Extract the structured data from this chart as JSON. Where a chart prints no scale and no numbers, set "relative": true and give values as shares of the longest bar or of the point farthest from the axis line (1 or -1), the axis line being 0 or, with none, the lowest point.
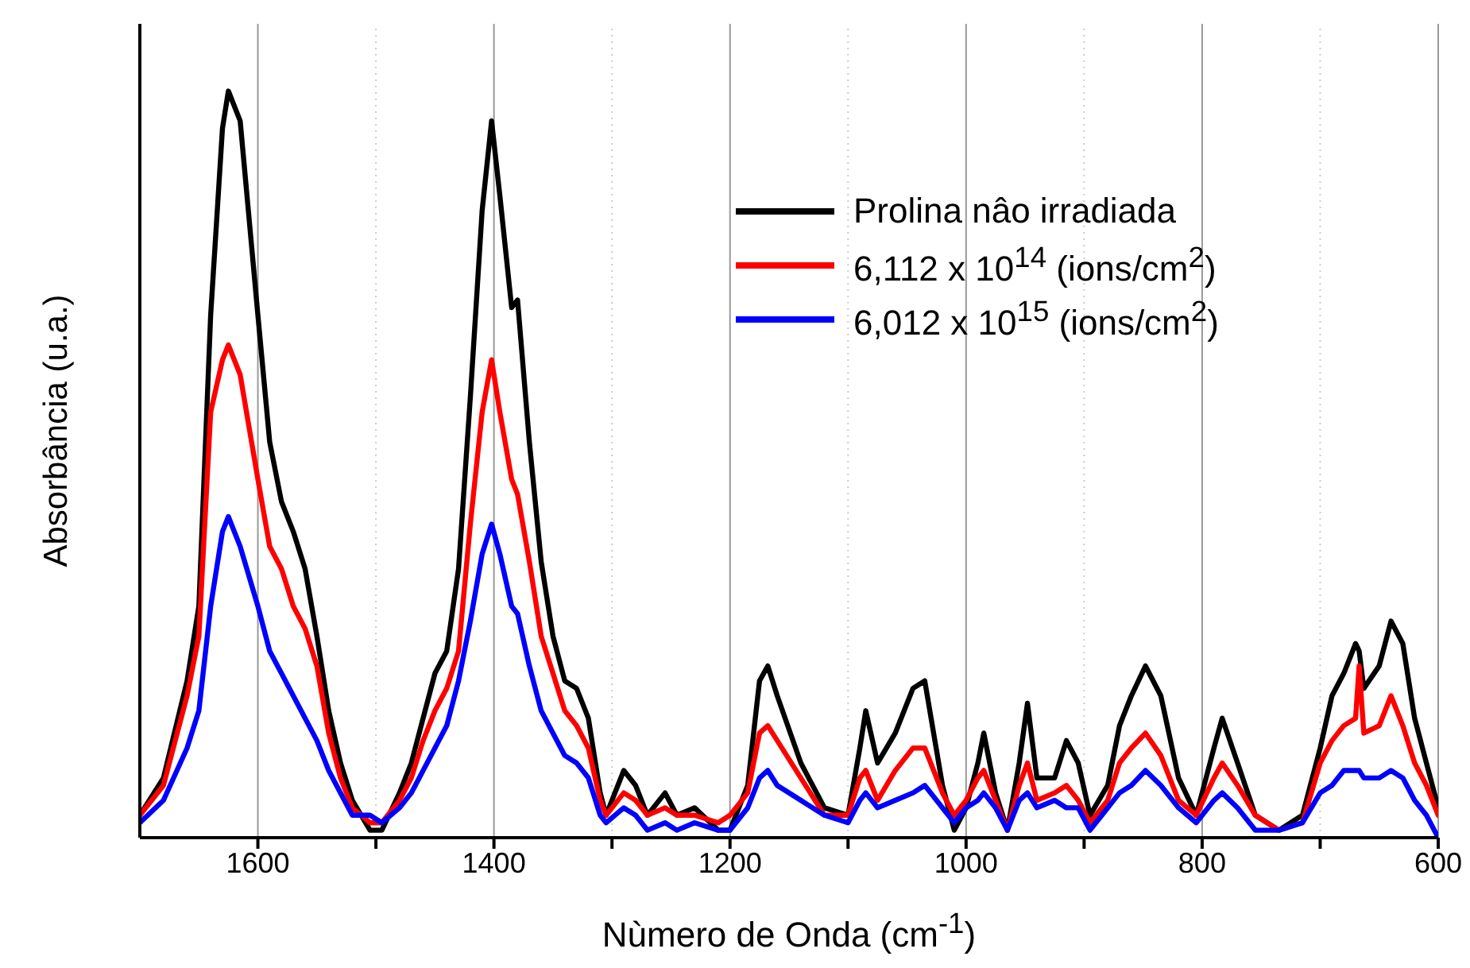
{
  "chart_data": {
    "type": "line",
    "relative": true,
    "xlabel": "Nùmero de Onda (cm$^{-1}$)",
    "ylabel": "Absorbância (u.a.)",
    "xlim": [
      1700,
      600
    ],
    "xticks": [
      {
        "value": 1600,
        "label": "1600"
      },
      {
        "value": 1500,
        "label": null
      },
      {
        "value": 1400,
        "label": "1400"
      },
      {
        "value": 1300,
        "label": null
      },
      {
        "value": 1200,
        "label": "1200"
      },
      {
        "value": 1100,
        "label": null
      },
      {
        "value": 1000,
        "label": "1000"
      },
      {
        "value": 900,
        "label": null
      },
      {
        "value": 800,
        "label": "800"
      },
      {
        "value": 700,
        "label": null
      },
      {
        "value": 600,
        "label": "600"
      }
    ],
    "grid": "x",
    "legend": "top right",
    "marker": "none",
    "line_style": "solid",
    "x": [
      1700,
      1680,
      1660,
      1650,
      1640,
      1630,
      1625,
      1615,
      1600,
      1590,
      1580,
      1570,
      1560,
      1550,
      1540,
      1530,
      1520,
      1505,
      1495,
      1480,
      1470,
      1460,
      1450,
      1440,
      1430,
      1420,
      1410,
      1402,
      1395,
      1385,
      1380,
      1370,
      1360,
      1350,
      1340,
      1330,
      1320,
      1310,
      1305,
      1290,
      1280,
      1270,
      1255,
      1245,
      1230,
      1210,
      1200,
      1185,
      1175,
      1168,
      1160,
      1140,
      1120,
      1100,
      1090,
      1085,
      1075,
      1060,
      1045,
      1035,
      1020,
      1010,
      1000,
      990,
      985,
      975,
      965,
      955,
      948,
      940,
      925,
      915,
      905,
      895,
      880,
      870,
      860,
      848,
      835,
      820,
      805,
      790,
      783,
      770,
      755,
      735,
      715,
      700,
      690,
      680,
      670,
      667,
      663,
      650,
      640,
      630,
      620,
      610,
      600
    ],
    "series": [
      {
        "name": "Prolina nâo irradiada",
        "color": "#000000",
        "values": [
          0.03,
          0.08,
          0.21,
          0.31,
          0.7,
          0.95,
          1.0,
          0.96,
          0.7,
          0.53,
          0.45,
          0.41,
          0.36,
          0.27,
          0.17,
          0.1,
          0.05,
          0.01,
          0.01,
          0.06,
          0.1,
          0.16,
          0.22,
          0.25,
          0.36,
          0.59,
          0.84,
          0.96,
          0.86,
          0.71,
          0.72,
          0.53,
          0.37,
          0.27,
          0.21,
          0.2,
          0.16,
          0.06,
          0.03,
          0.09,
          0.07,
          0.03,
          0.06,
          0.03,
          0.04,
          0.01,
          0.01,
          0.07,
          0.21,
          0.23,
          0.19,
          0.1,
          0.04,
          0.03,
          0.12,
          0.17,
          0.1,
          0.14,
          0.2,
          0.21,
          0.07,
          0.01,
          0.04,
          0.1,
          0.14,
          0.06,
          0.01,
          0.1,
          0.18,
          0.08,
          0.08,
          0.13,
          0.1,
          0.03,
          0.07,
          0.15,
          0.19,
          0.23,
          0.19,
          0.08,
          0.03,
          0.12,
          0.16,
          0.1,
          0.03,
          0.01,
          0.03,
          0.12,
          0.19,
          0.22,
          0.26,
          0.25,
          0.2,
          0.23,
          0.29,
          0.26,
          0.16,
          0.1,
          0.04
        ]
      },
      {
        "name": "6,112 x 10$^{14}$ (ions/cm$^{2}$)",
        "color": "#ff0000",
        "values": [
          0.03,
          0.07,
          0.19,
          0.27,
          0.57,
          0.64,
          0.66,
          0.62,
          0.48,
          0.39,
          0.36,
          0.31,
          0.28,
          0.23,
          0.14,
          0.08,
          0.04,
          0.02,
          0.02,
          0.05,
          0.08,
          0.13,
          0.17,
          0.2,
          0.25,
          0.42,
          0.57,
          0.64,
          0.57,
          0.48,
          0.46,
          0.37,
          0.27,
          0.22,
          0.17,
          0.15,
          0.12,
          0.05,
          0.03,
          0.06,
          0.05,
          0.03,
          0.04,
          0.03,
          0.03,
          0.02,
          0.03,
          0.06,
          0.14,
          0.15,
          0.13,
          0.08,
          0.03,
          0.03,
          0.08,
          0.09,
          0.05,
          0.09,
          0.12,
          0.12,
          0.06,
          0.03,
          0.05,
          0.08,
          0.09,
          0.05,
          0.01,
          0.07,
          0.1,
          0.05,
          0.06,
          0.07,
          0.05,
          0.02,
          0.05,
          0.1,
          0.12,
          0.14,
          0.11,
          0.05,
          0.03,
          0.08,
          0.1,
          0.07,
          0.03,
          0.01,
          0.02,
          0.1,
          0.13,
          0.15,
          0.16,
          0.23,
          0.14,
          0.15,
          0.19,
          0.15,
          0.1,
          0.07,
          0.03
        ]
      },
      {
        "name": "6,012 x 10$^{15}$ (ions/cm$^{2}$)",
        "color": "#0000ff",
        "values": [
          0.02,
          0.05,
          0.12,
          0.17,
          0.31,
          0.41,
          0.43,
          0.39,
          0.31,
          0.25,
          0.22,
          0.19,
          0.16,
          0.13,
          0.09,
          0.06,
          0.03,
          0.03,
          0.02,
          0.04,
          0.06,
          0.09,
          0.12,
          0.15,
          0.21,
          0.29,
          0.38,
          0.42,
          0.38,
          0.31,
          0.3,
          0.23,
          0.17,
          0.14,
          0.11,
          0.1,
          0.08,
          0.03,
          0.02,
          0.04,
          0.03,
          0.01,
          0.02,
          0.01,
          0.02,
          0.01,
          0.01,
          0.04,
          0.08,
          0.09,
          0.07,
          0.05,
          0.03,
          0.02,
          0.05,
          0.06,
          0.04,
          0.05,
          0.06,
          0.07,
          0.04,
          0.02,
          0.04,
          0.05,
          0.06,
          0.04,
          0.01,
          0.05,
          0.06,
          0.04,
          0.05,
          0.04,
          0.04,
          0.01,
          0.04,
          0.06,
          0.07,
          0.09,
          0.07,
          0.04,
          0.02,
          0.05,
          0.06,
          0.04,
          0.01,
          0.01,
          0.02,
          0.06,
          0.07,
          0.09,
          0.09,
          0.09,
          0.08,
          0.08,
          0.09,
          0.08,
          0.05,
          0.03,
          0
        ]
      }
    ]
  }
}
